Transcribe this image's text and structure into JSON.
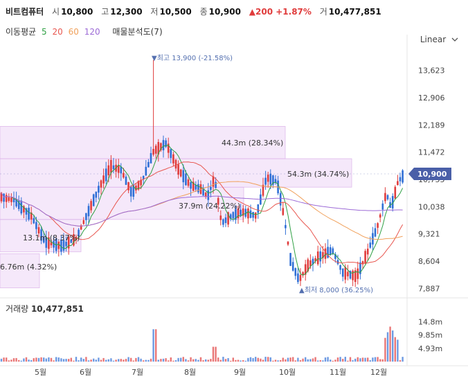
{
  "header": {
    "name": "비트컴퓨터",
    "open_label": "시",
    "open": "10,800",
    "high_label": "고",
    "high": "12,300",
    "low_label": "저",
    "low": "10,500",
    "close_label": "종",
    "close": "10,900",
    "change": "▲200 +1.87%",
    "volume_label": "거",
    "volume": "10,477,851"
  },
  "ma_legend": {
    "title": "이동평균",
    "p5": "5",
    "p20": "20",
    "p60": "60",
    "p120": "120",
    "analysis": "매물분석도(7)"
  },
  "scale_mode": "Linear",
  "colors": {
    "up": "#e03c3c",
    "down": "#2f6fd6",
    "ma5": "#2ea043",
    "ma20": "#e8564f",
    "ma60": "#f0a05a",
    "ma120": "#9c6ad6",
    "zone": "#f4e4fa",
    "current": "#4a5fa8"
  },
  "chart_data": {
    "type": "candlestick",
    "x_labels": [
      "5월",
      "6월",
      "7월",
      "8월",
      "9월",
      "10월",
      "11월",
      "12월"
    ],
    "y_ticks": [
      "13,623",
      "12,906",
      "12,189",
      "11,472",
      "10,755",
      "10,038",
      "9,321",
      "8,604",
      "7,887"
    ],
    "ylim": [
      7600,
      14200
    ],
    "current_price": "10,900",
    "high_marker": "최고 13,900 (-21.58%)",
    "low_marker": "최저 8,000 (36.25%)",
    "volume_title": "거래량",
    "volume_value": "10,477,851",
    "volume_ticks": [
      "14.8m",
      "9.85m",
      "4.93m"
    ],
    "volume_max": 19000000,
    "volume_profile": [
      {
        "label": "6.76m (4.32%)",
        "low": 7900,
        "high": 8800
      },
      {
        "label": "13.1m (8.37%)",
        "low": 8850,
        "high": 9700
      },
      {
        "label": "37.9m (24.22%)",
        "low": 9700,
        "high": 10550
      },
      {
        "label": "54.3m (34.74%)",
        "low": 10550,
        "high": 11300
      },
      {
        "label": "44.3m (28.34%)",
        "low": 11300,
        "high": 12150
      }
    ]
  }
}
